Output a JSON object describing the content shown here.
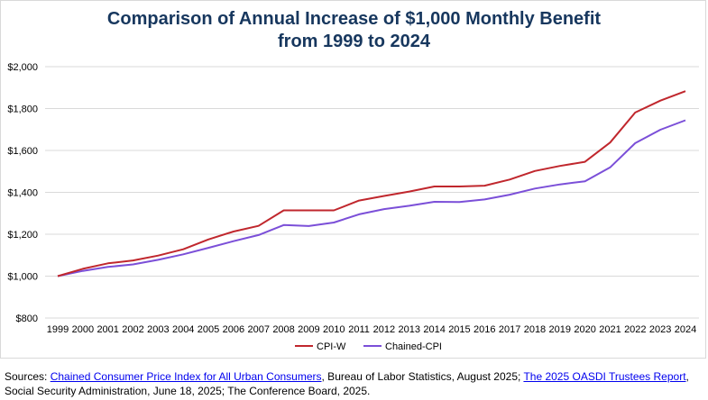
{
  "title_line1": "Comparison of Annual Increase of $1,000 Monthly Benefit",
  "title_line2": "from 1999 to 2024",
  "colors": {
    "title": "#17375e",
    "cpi_w": "#c0272d",
    "chained_cpi": "#7b4fd8",
    "grid": "#d9d9d9"
  },
  "chart_data": {
    "type": "line",
    "title": "Comparison of Annual Increase of $1,000 Monthly Benefit from 1999 to 2024",
    "x": [
      "1999",
      "2000",
      "2001",
      "2002",
      "2003",
      "2004",
      "2005",
      "2006",
      "2007",
      "2008",
      "2009",
      "2010",
      "2011",
      "2012",
      "2013",
      "2014",
      "2015",
      "2016",
      "2017",
      "2018",
      "2019",
      "2020",
      "2021",
      "2022",
      "2023",
      "2024"
    ],
    "series": [
      {
        "name": "CPI-W",
        "values": [
          1000,
          1035,
          1061,
          1075,
          1098,
          1128,
          1175,
          1213,
          1240,
          1314,
          1314,
          1314,
          1361,
          1383,
          1404,
          1428,
          1428,
          1432,
          1461,
          1502,
          1526,
          1546,
          1638,
          1781,
          1838,
          1883
        ]
      },
      {
        "name": "Chained-CPI",
        "values": [
          1000,
          1025,
          1044,
          1056,
          1078,
          1104,
          1135,
          1167,
          1196,
          1244,
          1239,
          1256,
          1295,
          1320,
          1336,
          1355,
          1354,
          1366,
          1389,
          1418,
          1438,
          1453,
          1519,
          1635,
          1699,
          1744
        ]
      }
    ],
    "yticks": [
      "$800",
      "$1,000",
      "$1,200",
      "$1,400",
      "$1,600",
      "$1,800",
      "$2,000"
    ],
    "ylim": [
      800,
      2000
    ],
    "grid": true,
    "legend": "bottom"
  },
  "sources": {
    "prefix": "Sources: ",
    "link1": "Chained Consumer Price Index for All Urban Consumers",
    "mid1": ", Bureau of Labor Statistics, August 2025; ",
    "link2": "The 2025 OASDI Trustees Report",
    "suffix": ", Social Security Administration, June 18, 2025; The Conference Board, 2025."
  }
}
